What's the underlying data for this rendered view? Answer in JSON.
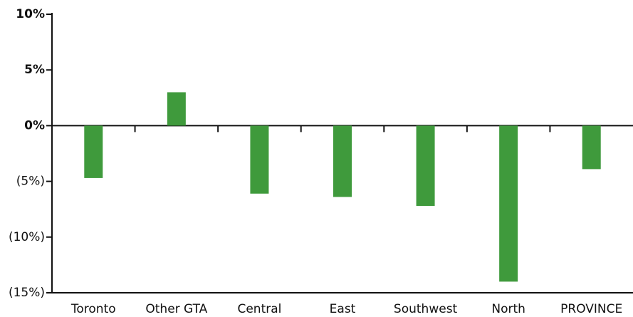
{
  "chart_data": {
    "type": "bar",
    "categories": [
      "Toronto",
      "Other GTA",
      "Central",
      "East",
      "Southwest",
      "North",
      "PROVINCE"
    ],
    "values": [
      -4.7,
      3.0,
      -6.1,
      -6.4,
      -7.2,
      -14.0,
      -3.9
    ],
    "color": "#3f9a3c",
    "ylim": [
      -15,
      10
    ],
    "yticks": [
      {
        "value": -15,
        "label": "(15%)"
      },
      {
        "value": -10,
        "label": "(10%)"
      },
      {
        "value": -5,
        "label": "(5%)"
      },
      {
        "value": 0,
        "label": "0%"
      },
      {
        "value": 5,
        "label": "5%"
      },
      {
        "value": 10,
        "label": "10%"
      }
    ],
    "grid": false
  }
}
